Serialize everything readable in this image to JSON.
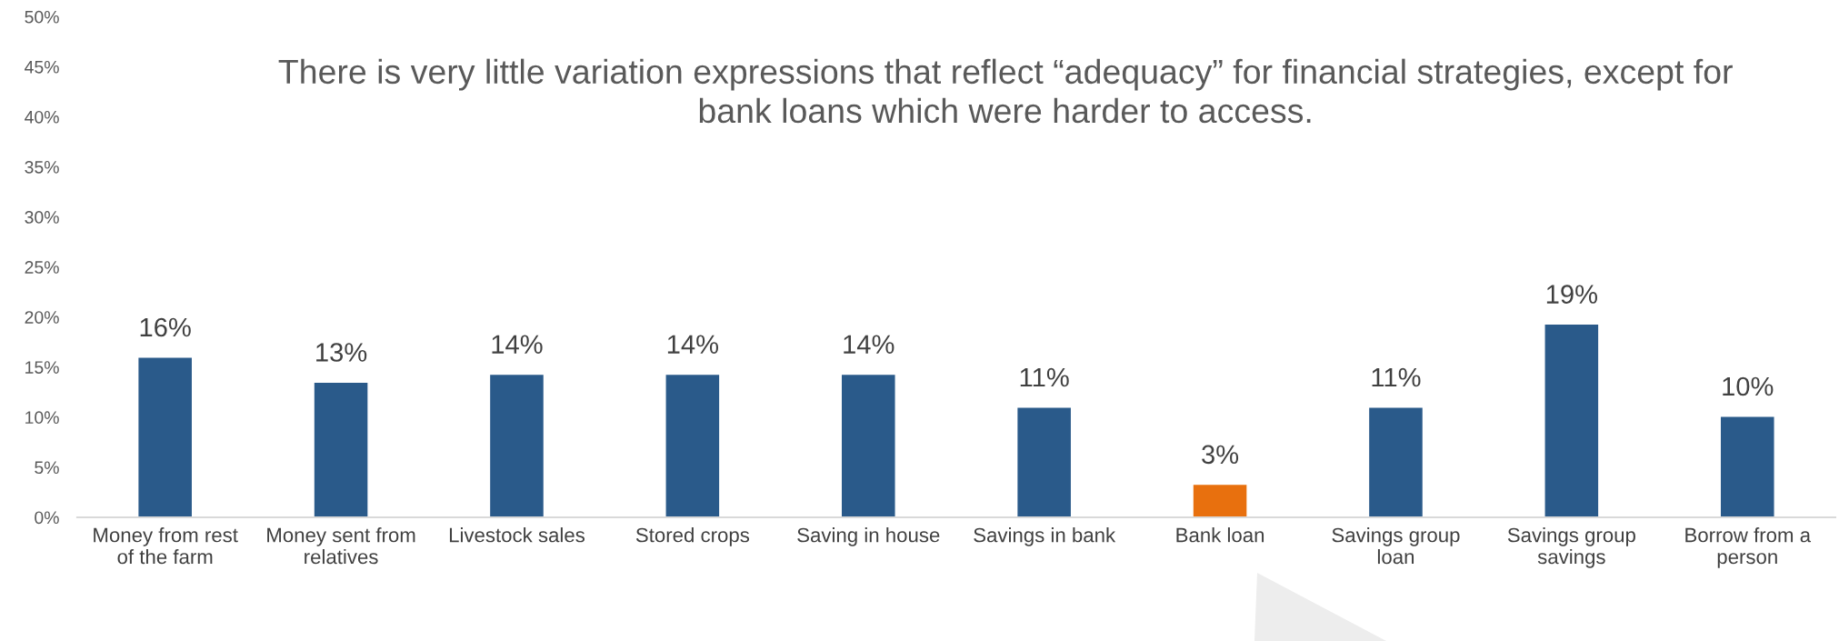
{
  "chart_data": {
    "type": "bar",
    "title": "There is very little variation expressions that reflect “adequacy” for financial strategies, except for bank loans which were harder to access.",
    "categories": [
      "Money from rest of the farm",
      "Money sent from relatives",
      "Livestock sales",
      "Stored crops",
      "Saving in house",
      "Savings in bank",
      "Bank loan",
      "Savings group loan",
      "Savings group savings",
      "Borrow from a person"
    ],
    "values": [
      16.0,
      13.5,
      14.3,
      14.3,
      14.3,
      11.0,
      3.3,
      11.0,
      19.3,
      10.1
    ],
    "colors": [
      "#2a5a8a",
      "#2a5a8a",
      "#2a5a8a",
      "#2a5a8a",
      "#2a5a8a",
      "#2a5a8a",
      "#e8700e",
      "#2a5a8a",
      "#2a5a8a",
      "#2a5a8a"
    ],
    "value_labels": [
      "16%",
      "13%",
      "14%",
      "14%",
      "14%",
      "11%",
      "3%",
      "11%",
      "19%",
      "10%"
    ],
    "ylim": [
      0,
      50
    ],
    "yticks": [
      {
        "value": 0,
        "label": "0%"
      },
      {
        "value": 5,
        "label": "5%"
      },
      {
        "value": 10,
        "label": "10%"
      },
      {
        "value": 15,
        "label": "15%"
      },
      {
        "value": 20,
        "label": "20%"
      },
      {
        "value": 25,
        "label": "25%"
      },
      {
        "value": 30,
        "label": "30%"
      },
      {
        "value": 35,
        "label": "35%"
      },
      {
        "value": 40,
        "label": "40%"
      },
      {
        "value": 45,
        "label": "45%"
      },
      {
        "value": 50,
        "label": "50%"
      }
    ],
    "grid": false,
    "legend": false
  }
}
